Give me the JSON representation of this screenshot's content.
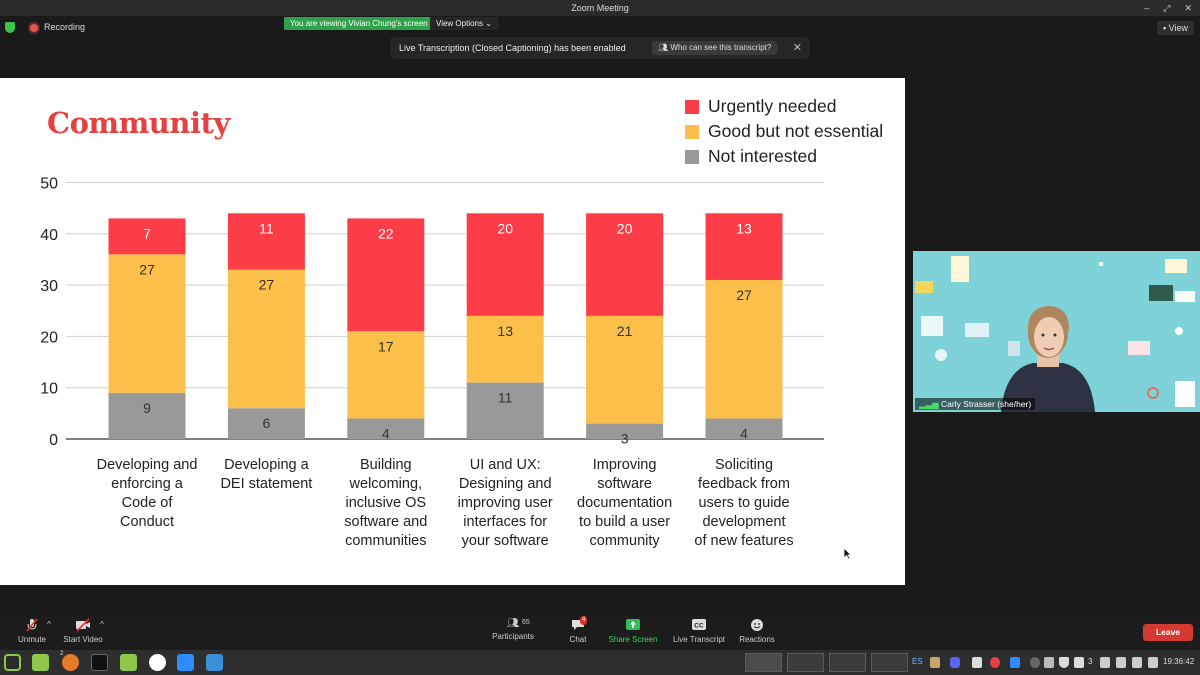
{
  "window": {
    "title": "Zoom Meeting"
  },
  "topbar": {
    "recording_label": "Recording",
    "viewing_banner": "You are viewing Vivian Chung's screen",
    "view_options_label": "View Options",
    "view_button_label": "View"
  },
  "caption_toast": {
    "message": "Live Transcription (Closed Captioning) has been enabled",
    "link_label": "Who can see this transcript?",
    "close_label": "✕"
  },
  "slide": {
    "title": "Community",
    "legend": [
      {
        "label": "Urgently needed",
        "color": "#fc3c46"
      },
      {
        "label": "Good but not essential",
        "color": "#fcc04a"
      },
      {
        "label": "Not interested",
        "color": "#999999"
      }
    ]
  },
  "chart_data": {
    "type": "bar",
    "stacked": true,
    "title": "Community",
    "ylim": [
      0,
      50
    ],
    "yticks": [
      0,
      10,
      20,
      30,
      40,
      50
    ],
    "grid": true,
    "legend_position": "top-right",
    "categories": [
      [
        "Developing and",
        "enforcing a",
        "Code of",
        "Conduct"
      ],
      [
        "Developing a",
        "DEI statement"
      ],
      [
        "Building",
        "welcoming,",
        "inclusive OS",
        "software and",
        "communities"
      ],
      [
        "UI and UX:",
        "Designing and",
        "improving user",
        "interfaces for",
        "your software"
      ],
      [
        "Improving",
        "software",
        "documentation",
        "to build a user",
        "community"
      ],
      [
        "Soliciting",
        "feedback from",
        "users to guide",
        "development",
        "of new features"
      ]
    ],
    "series": [
      {
        "name": "Not interested",
        "color": "#999999",
        "values": [
          9,
          6,
          4,
          11,
          3,
          4
        ]
      },
      {
        "name": "Good but not essential",
        "color": "#fcc04a",
        "values": [
          27,
          27,
          17,
          13,
          21,
          27
        ]
      },
      {
        "name": "Urgently needed",
        "color": "#fc3c46",
        "values": [
          7,
          11,
          22,
          20,
          20,
          13
        ]
      }
    ]
  },
  "video": {
    "participant_name": "Carly Strasser (she/her)"
  },
  "toolbar": {
    "unmute_label": "Unmute",
    "start_video_label": "Start Video",
    "participants_count": "65",
    "participants_label": "Participants",
    "chat_badge": "4",
    "chat_label": "Chat",
    "share_screen_label": "Share Screen",
    "live_transcript_label": "Live Transcript",
    "reactions_label": "Reactions",
    "leave_label": "Leave"
  },
  "taskbar": {
    "firefox_badge": "2",
    "language": "ES",
    "tray_count": "3",
    "clock": "19:36:42"
  }
}
